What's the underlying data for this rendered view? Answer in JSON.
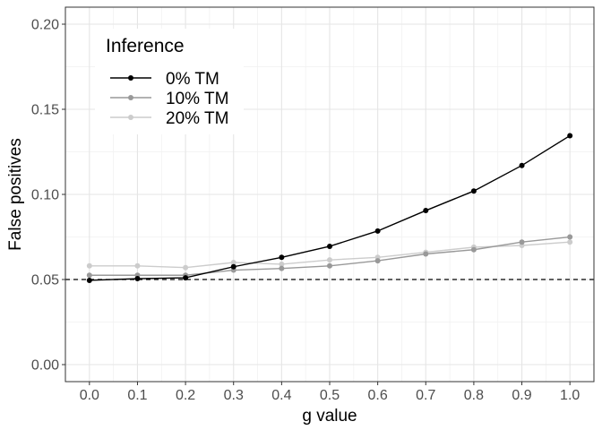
{
  "chart_data": {
    "type": "line",
    "x": [
      0.0,
      0.1,
      0.2,
      0.3,
      0.4,
      0.5,
      0.6,
      0.7,
      0.8,
      0.9,
      1.0
    ],
    "x_tick_labels": [
      "0.0",
      "0.1",
      "0.2",
      "0.3",
      "0.4",
      "0.5",
      "0.6",
      "0.7",
      "0.8",
      "0.9",
      "1.0"
    ],
    "y_ticks": [
      0.0,
      0.05,
      0.1,
      0.15,
      0.2
    ],
    "y_tick_labels": [
      "0.00",
      "0.05",
      "0.10",
      "0.15",
      "0.20"
    ],
    "xlim": [
      -0.05,
      1.05
    ],
    "ylim": [
      -0.01,
      0.21
    ],
    "xlabel": "g value",
    "ylabel": "False positives",
    "legend_title": "Inference",
    "legend_position": "top-left",
    "grid": true,
    "reference_line": {
      "y": 0.05,
      "style": "dashed",
      "color": "#000000"
    },
    "series": [
      {
        "name": "0% TM",
        "color": "#000000",
        "values": [
          0.0495,
          0.0505,
          0.051,
          0.0575,
          0.063,
          0.0695,
          0.0785,
          0.0905,
          0.102,
          0.117,
          0.1345
        ]
      },
      {
        "name": "10% TM",
        "color": "#999999",
        "values": [
          0.0525,
          0.0525,
          0.0525,
          0.0555,
          0.0565,
          0.058,
          0.061,
          0.065,
          0.0675,
          0.072,
          0.075
        ]
      },
      {
        "name": "20% TM",
        "color": "#cccccc",
        "values": [
          0.058,
          0.058,
          0.057,
          0.06,
          0.059,
          0.0615,
          0.063,
          0.066,
          0.069,
          0.07,
          0.072
        ]
      }
    ]
  }
}
